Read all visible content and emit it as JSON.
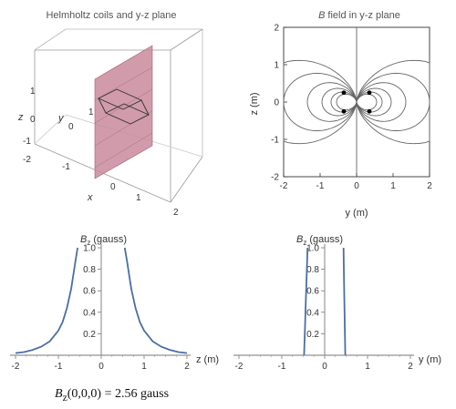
{
  "chart_data": [
    {
      "type": "3d-surface",
      "title": "Helmholtz coils and y-z plane",
      "axis_labels": {
        "x": "x",
        "y": "y",
        "z": "z"
      },
      "x_ticks": [
        "2",
        "1",
        "0",
        "-1"
      ],
      "y_ticks": [
        "0",
        "1"
      ],
      "z_ticks": [
        "1",
        "0",
        "-1",
        "-2"
      ],
      "plane_color": "#c98a9c",
      "grid": false
    },
    {
      "type": "contour",
      "title_italic": "B",
      "title": "field in y-z plane",
      "xlabel": "y (m)",
      "ylabel": "z (m)",
      "xlim": [
        -2,
        2
      ],
      "ylim": [
        -2,
        2
      ],
      "x_ticks": [
        "-2",
        "-1",
        "0",
        "1",
        "2"
      ],
      "y_ticks": [
        "2",
        "1",
        "0",
        "-1",
        "-2"
      ],
      "coil_points": [
        [
          -0.35,
          0.25
        ],
        [
          -0.35,
          -0.25
        ],
        [
          0.35,
          0.25
        ],
        [
          0.35,
          -0.25
        ]
      ],
      "contour_color": "#666666"
    },
    {
      "type": "line",
      "ylabel_italic": "B",
      "ylabel_sub": "z",
      "ylabel": "(gauss)",
      "xlabel": "z (m)",
      "xlim": [
        -2,
        2
      ],
      "ylim": [
        0,
        1
      ],
      "x_ticks": [
        "-2",
        "-1",
        "0",
        "1",
        "2"
      ],
      "y_ticks": [
        "1.0",
        "0.8",
        "0.6",
        "0.4",
        "0.2"
      ],
      "series": [
        {
          "x": [
            -2.0,
            -1.8,
            -1.6,
            -1.4,
            -1.2,
            -1.0,
            -0.9,
            -0.8,
            -0.7,
            -0.6,
            -0.55
          ],
          "y": [
            0.02,
            0.03,
            0.05,
            0.08,
            0.13,
            0.23,
            0.31,
            0.44,
            0.62,
            0.88,
            1.0
          ]
        },
        {
          "x": [
            0.55,
            0.6,
            0.7,
            0.8,
            0.9,
            1.0,
            1.2,
            1.4,
            1.6,
            1.8,
            2.0
          ],
          "y": [
            1.0,
            0.88,
            0.62,
            0.44,
            0.31,
            0.23,
            0.13,
            0.08,
            0.05,
            0.03,
            0.02
          ]
        }
      ],
      "line_color": "#4a6fa5"
    },
    {
      "type": "line",
      "ylabel_italic": "B",
      "ylabel_sub": "z",
      "ylabel": "(gauss)",
      "xlabel": "y (m)",
      "xlim": [
        -2,
        2
      ],
      "ylim": [
        0,
        1
      ],
      "x_ticks": [
        "-2",
        "-1",
        "0",
        "1",
        "2"
      ],
      "y_ticks": [
        "1.0",
        "0.8",
        "0.6",
        "0.4",
        "0.2"
      ],
      "series": [
        {
          "x": [
            -0.48,
            -0.46,
            -0.44,
            -0.42,
            -0.4
          ],
          "y": [
            0.0,
            0.25,
            0.5,
            0.75,
            1.0
          ]
        },
        {
          "x": [
            0.48,
            0.47,
            0.46,
            0.45,
            0.44
          ],
          "y": [
            0.0,
            0.25,
            0.5,
            0.75,
            1.0
          ]
        }
      ],
      "line_color": "#4a6fa5"
    }
  ],
  "caption": {
    "B": "B",
    "sub": "z",
    "text": "(0,0,0) = 2.56 gauss"
  }
}
